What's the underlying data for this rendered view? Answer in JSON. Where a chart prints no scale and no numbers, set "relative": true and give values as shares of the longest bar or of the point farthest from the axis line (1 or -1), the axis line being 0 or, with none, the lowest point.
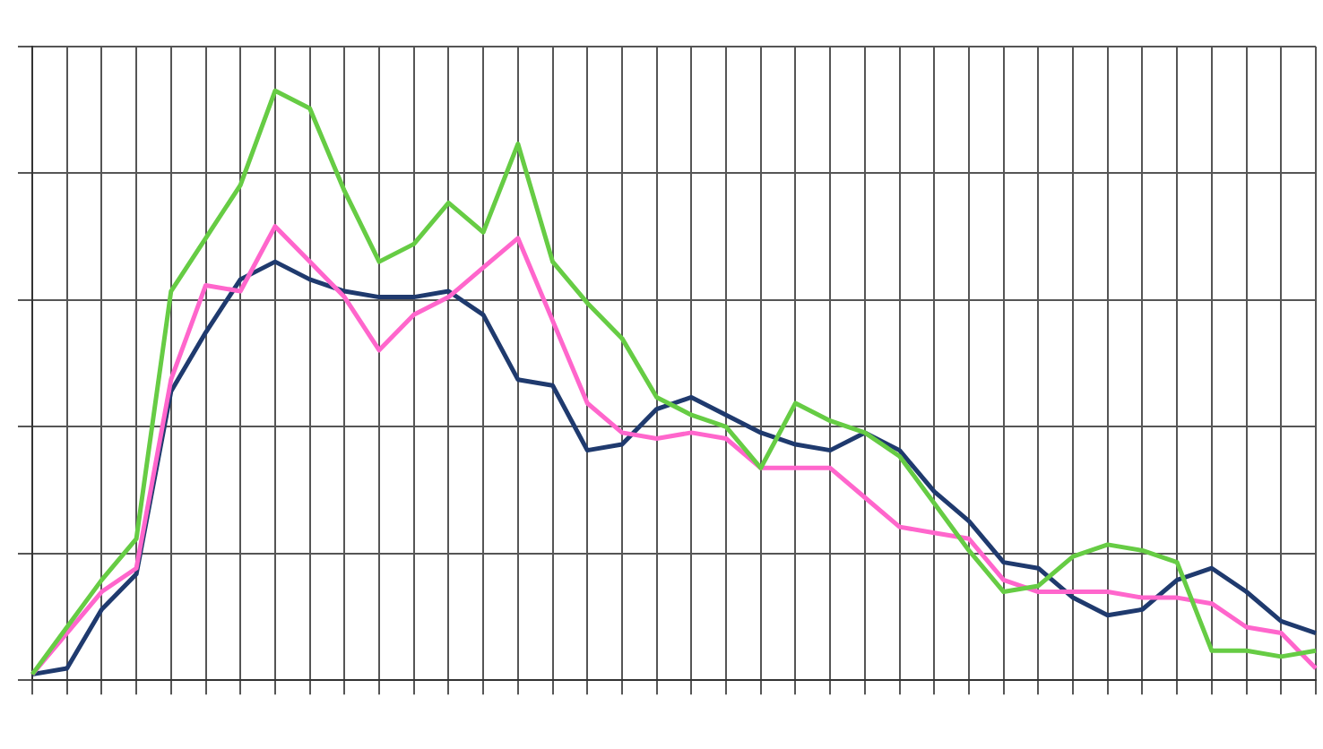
{
  "chart_data": {
    "type": "line",
    "relative": true,
    "grid": true,
    "legend": false,
    "marker": "none",
    "line_style": "solid",
    "categories": [
      null,
      null,
      null,
      null,
      null,
      null,
      null,
      null,
      null,
      null,
      null,
      null,
      null,
      null,
      null,
      null,
      null,
      null,
      null,
      null,
      null,
      null,
      null,
      null,
      null,
      null,
      null,
      null,
      null,
      null,
      null,
      null,
      null,
      null,
      null,
      null,
      null,
      null
    ],
    "series": [
      {
        "color": "#66cc44",
        "values": [
          0.01,
          0.09,
          0.17,
          0.24,
          0.66,
          0.75,
          0.84,
          1,
          0.97,
          0.83,
          0.71,
          0.74,
          0.81,
          0.76,
          0.91,
          0.71,
          0.64,
          0.58,
          0.48,
          0.45,
          0.43,
          0.36,
          0.47,
          0.44,
          0.42,
          0.38,
          0.3,
          0.22,
          0.15,
          0.16,
          0.21,
          0.23,
          0.22,
          0.2,
          0.05,
          0.05,
          0.04,
          0.05
        ]
      },
      {
        "color": "#ff66cc",
        "values": [
          0.01,
          0.08,
          0.15,
          0.19,
          0.51,
          0.67,
          0.66,
          0.77,
          0.71,
          0.65,
          0.56,
          0.62,
          0.65,
          0.7,
          0.75,
          0.61,
          0.47,
          0.42,
          0.41,
          0.42,
          0.41,
          0.36,
          0.36,
          0.36,
          0.31,
          0.26,
          0.25,
          0.24,
          0.17,
          0.15,
          0.15,
          0.15,
          0.14,
          0.14,
          0.13,
          0.09,
          0.08,
          0.02
        ]
      },
      {
        "color": "#1f3a6e",
        "values": [
          0.01,
          0.02,
          0.12,
          0.18,
          0.49,
          0.59,
          0.68,
          0.71,
          0.68,
          0.66,
          0.65,
          0.65,
          0.66,
          0.62,
          0.51,
          0.5,
          0.39,
          0.4,
          0.46,
          0.48,
          0.45,
          0.42,
          0.4,
          0.39,
          0.42,
          0.39,
          0.32,
          0.27,
          0.2,
          0.19,
          0.14,
          0.11,
          0.12,
          0.17,
          0.19,
          0.15,
          0.1,
          0.08
        ]
      }
    ]
  }
}
